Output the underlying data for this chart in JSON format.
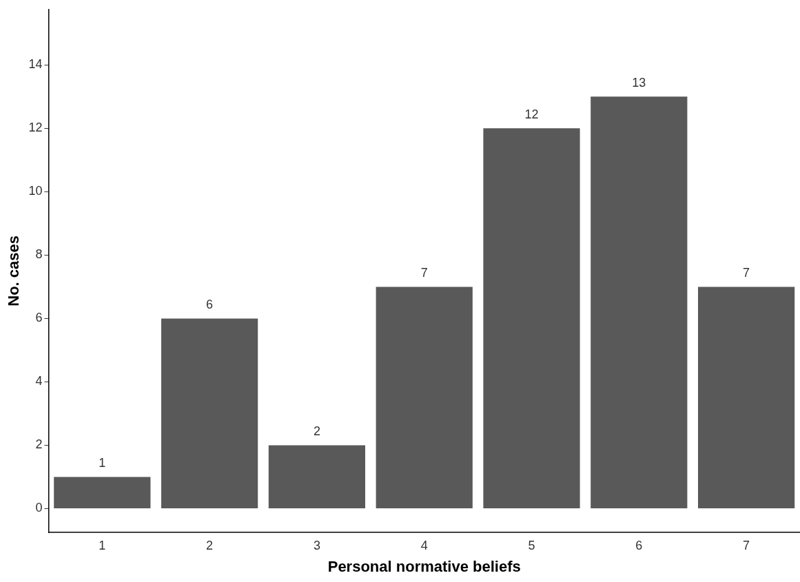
{
  "chart_data": {
    "type": "bar",
    "xlabel": "Personal normative beliefs",
    "ylabel": "No. cases",
    "categories": [
      "1",
      "2",
      "3",
      "4",
      "5",
      "6",
      "7"
    ],
    "values": [
      1,
      6,
      2,
      7,
      12,
      13,
      7
    ],
    "color": "#595959",
    "ylim": [
      -0.75,
      15.75
    ],
    "yticks": [
      0,
      2,
      4,
      6,
      8,
      10,
      12,
      14
    ],
    "grid": false,
    "data_labels": true,
    "legend": false
  }
}
